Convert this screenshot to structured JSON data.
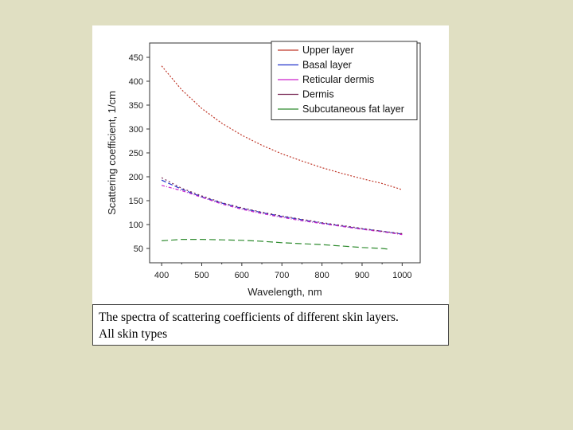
{
  "caption": {
    "line1": "The spectra of scattering coefficients of different skin layers.",
    "line2": "All skin types"
  },
  "chart_data": {
    "type": "line",
    "xlabel": "Wavelength, nm",
    "ylabel": "Scattering coefficient, 1/cm",
    "xlim": [
      370,
      1045
    ],
    "ylim": [
      20,
      480
    ],
    "xticks": [
      400,
      500,
      600,
      700,
      800,
      900,
      1000
    ],
    "yticks": [
      50,
      100,
      150,
      200,
      250,
      300,
      350,
      400,
      450
    ],
    "grid": false,
    "legend_position": "top-right",
    "x": [
      400,
      450,
      500,
      550,
      600,
      650,
      700,
      750,
      800,
      850,
      900,
      950,
      1000
    ],
    "series": [
      {
        "name": "Upper layer",
        "color": "#c0392b",
        "dash": "2,2",
        "values": [
          432,
          382,
          343,
          312,
          287,
          266,
          248,
          233,
          219,
          207,
          196,
          186,
          173
        ]
      },
      {
        "name": "Basal layer",
        "color": "#2233cc",
        "dash": "6,3",
        "values": [
          193,
          174,
          158,
          145,
          134,
          125,
          117,
          110,
          103,
          97,
          91,
          86,
          80
        ]
      },
      {
        "name": "Reticular dermis",
        "color": "#cc22cc",
        "dash": "4,2,1,2",
        "values": [
          182,
          171,
          157,
          143,
          132,
          123,
          115,
          108,
          102,
          96,
          90,
          85,
          79
        ]
      },
      {
        "name": "Dermis",
        "color": "#7a2a55",
        "dash": "2,3",
        "values": [
          198,
          176,
          160,
          146,
          135,
          126,
          118,
          111,
          104,
          98,
          92,
          86,
          81
        ]
      },
      {
        "name": "Subcutaneous fat layer",
        "color": "#2e8b2e",
        "dash": "8,4",
        "x": [
          400,
          450,
          500,
          550,
          600,
          650,
          700,
          750,
          800,
          850,
          900,
          950,
          970
        ],
        "values": [
          66,
          69,
          69,
          68,
          67,
          65,
          62,
          60,
          58,
          55,
          52,
          50,
          48
        ]
      }
    ]
  }
}
